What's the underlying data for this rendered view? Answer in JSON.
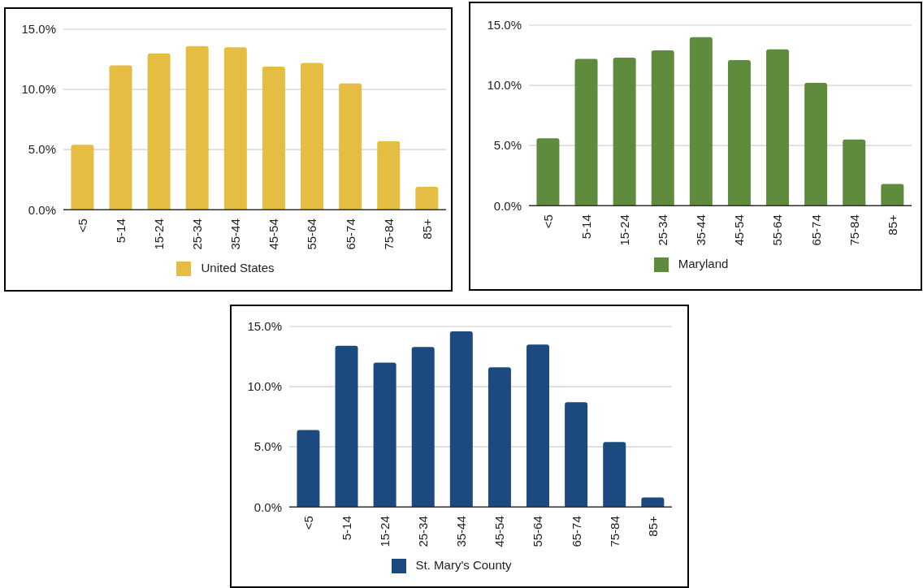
{
  "chart_data": [
    {
      "type": "bar",
      "categories": [
        "<5",
        "5-14",
        "15-24",
        "25-34",
        "35-44",
        "45-54",
        "55-64",
        "65-74",
        "75-84",
        "85+"
      ],
      "series": [
        {
          "name": "United States",
          "color": "#e5bd42",
          "values": [
            5.4,
            12.0,
            13.0,
            13.6,
            13.5,
            11.9,
            12.2,
            10.5,
            5.7,
            1.9
          ]
        }
      ],
      "ylim": [
        0,
        15
      ],
      "yticks": [
        {
          "value": 0,
          "label": "0.0%"
        },
        {
          "value": 5,
          "label": "5.0%"
        },
        {
          "value": 10,
          "label": "10.0%"
        },
        {
          "value": 15,
          "label": "15.0%"
        }
      ],
      "grid": "y",
      "legend": "bottom"
    },
    {
      "type": "bar",
      "categories": [
        "<5",
        "5-14",
        "15-24",
        "25-34",
        "35-44",
        "45-54",
        "55-64",
        "65-74",
        "75-84",
        "85+"
      ],
      "series": [
        {
          "name": "Maryland",
          "color": "#5e8c3c",
          "values": [
            5.6,
            12.2,
            12.3,
            12.9,
            14.0,
            12.1,
            13.0,
            10.2,
            5.5,
            1.8
          ]
        }
      ],
      "ylim": [
        0,
        15
      ],
      "yticks": [
        {
          "value": 0,
          "label": "0.0%"
        },
        {
          "value": 5,
          "label": "5.0%"
        },
        {
          "value": 10,
          "label": "10.0%"
        },
        {
          "value": 15,
          "label": "15.0%"
        }
      ],
      "grid": "y",
      "legend": "bottom"
    },
    {
      "type": "bar",
      "categories": [
        "<5",
        "5-14",
        "15-24",
        "25-34",
        "35-44",
        "45-54",
        "55-64",
        "65-74",
        "75-84",
        "85+"
      ],
      "series": [
        {
          "name": "St. Mary's County",
          "color": "#1c4a80",
          "values": [
            6.4,
            13.4,
            12.0,
            13.3,
            14.6,
            11.6,
            13.5,
            8.7,
            5.4,
            0.8
          ]
        }
      ],
      "ylim": [
        0,
        15
      ],
      "yticks": [
        {
          "value": 0,
          "label": "0.0%"
        },
        {
          "value": 5,
          "label": "5.0%"
        },
        {
          "value": 10,
          "label": "10.0%"
        },
        {
          "value": 15,
          "label": "15.0%"
        }
      ],
      "grid": "y",
      "legend": "bottom"
    }
  ]
}
